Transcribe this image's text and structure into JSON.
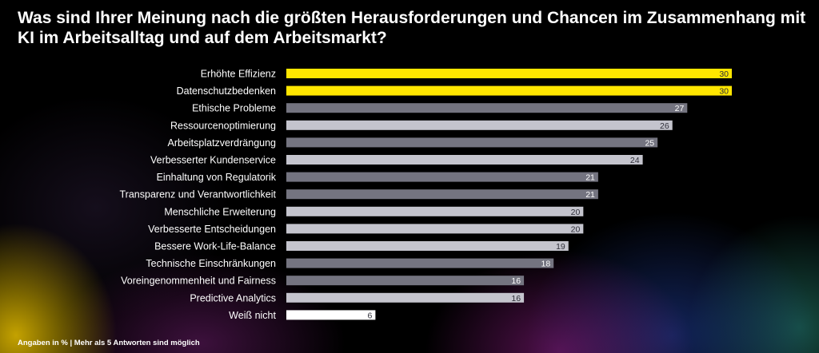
{
  "title": "Was sind Ihrer Meinung nach die größten Herausforderungen und Chancen im Zusammenhang mit KI im Arbeitsalltag und auf dem Arbeitsmarkt?",
  "footnote": "Angaben in % | Mehr als 5 Antworten sind möglich",
  "colors": {
    "highlight": "#ffe600",
    "dark": "#747480",
    "light": "#c4c4cd",
    "white": "#ffffff",
    "label_text": "#ffffff",
    "value_on_light": "#2e2e38",
    "value_on_dark": "#ffffff",
    "value_on_highlight": "#2e2e38"
  },
  "chart_data": {
    "type": "bar",
    "orientation": "horizontal",
    "title": "Was sind Ihrer Meinung nach die größten Herausforderungen und Chancen im Zusammenhang mit KI im Arbeitsalltag und auf dem Arbeitsmarkt?",
    "xlabel": "",
    "ylabel": "",
    "unit": "%",
    "xlim": [
      0,
      30
    ],
    "grid": false,
    "categories": [
      "Erhöhte Effizienz",
      "Datenschutzbedenken",
      "Ethische Probleme",
      "Ressourcenoptimierung",
      "Arbeitsplatzverdrängung",
      "Verbesserter Kundenservice",
      "Einhaltung von Regulatorik",
      "Transparenz und Verantwortlichkeit",
      "Menschliche Erweiterung",
      "Verbesserte Entscheidungen",
      "Bessere Work-Life-Balance",
      "Technische Einschränkungen",
      "Voreingenommenheit und Fairness",
      "Predictive Analytics",
      "Weiß nicht"
    ],
    "values": [
      30,
      30,
      27,
      26,
      25,
      24,
      21,
      21,
      20,
      20,
      19,
      18,
      16,
      16,
      6
    ],
    "bar_styles": [
      "highlight",
      "highlight",
      "dark",
      "light",
      "dark",
      "light",
      "dark",
      "dark",
      "light",
      "light",
      "light",
      "dark",
      "dark",
      "light",
      "white"
    ]
  }
}
